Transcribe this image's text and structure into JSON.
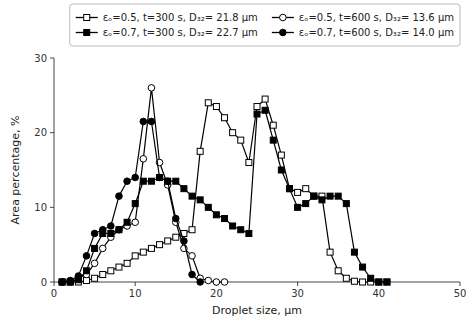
{
  "chart_data": {
    "type": "line",
    "xlabel": "Droplet size, μm",
    "ylabel": "Area percentage, %",
    "xlim": [
      0,
      50
    ],
    "ylim": [
      0,
      30
    ],
    "xticks": [
      0,
      10,
      20,
      30,
      40,
      50
    ],
    "yticks": [
      0,
      10,
      20,
      30
    ],
    "grid": false,
    "legend": "upper right",
    "series": [
      {
        "name": "εₒ=0.5, t=300 s, D₃₂= 21.8 μm",
        "color": "#000000",
        "marker": "square-open",
        "x": [
          1,
          2,
          3,
          4,
          5,
          6,
          7,
          8,
          9,
          10,
          11,
          12,
          13,
          14,
          15,
          16,
          17,
          18,
          19,
          20,
          21,
          22,
          23,
          24,
          25,
          26,
          27,
          28,
          29,
          30,
          31,
          32,
          33,
          34,
          35,
          36,
          37,
          38,
          39,
          40,
          41
        ],
        "values": [
          0.0,
          0.0,
          0.0,
          0.2,
          0.5,
          1.0,
          1.5,
          2.0,
          2.5,
          3.5,
          4.0,
          4.5,
          5.0,
          5.5,
          6.0,
          6.5,
          7.0,
          17.5,
          24.0,
          23.5,
          22.0,
          20.0,
          19.0,
          16.0,
          23.5,
          24.5,
          21.0,
          17.0,
          12.5,
          12.0,
          12.5,
          11.5,
          11.5,
          4.0,
          1.5,
          0.5,
          0.1,
          0.0,
          0.0,
          0.0,
          0.0
        ]
      },
      {
        "name": "εₒ=0.5, t=600 s, D₃₂= 13.6 μm",
        "color": "#000000",
        "marker": "circle-open",
        "x": [
          1,
          2,
          3,
          4,
          5,
          6,
          7,
          8,
          9,
          10,
          11,
          12,
          13,
          14,
          15,
          16,
          17,
          18,
          19,
          20,
          21
        ],
        "values": [
          0.0,
          0.0,
          0.5,
          1.0,
          2.5,
          4.5,
          6.0,
          7.0,
          7.5,
          8.0,
          16.5,
          26.0,
          16.0,
          13.0,
          8.0,
          4.5,
          3.5,
          0.5,
          0.2,
          0.0,
          0.0
        ]
      },
      {
        "name": "εₒ=0.7, t=300 s, D₃₂= 22.7 μm",
        "color": "#000000",
        "marker": "square",
        "x": [
          1,
          2,
          3,
          4,
          5,
          6,
          7,
          8,
          9,
          10,
          11,
          12,
          13,
          14,
          15,
          16,
          17,
          18,
          19,
          20,
          21,
          22,
          23,
          24,
          25,
          26,
          27,
          28,
          29,
          30,
          31,
          32,
          33,
          34,
          35,
          36,
          37,
          38,
          39,
          40,
          41
        ],
        "values": [
          0.0,
          0.0,
          0.3,
          1.5,
          4.5,
          6.5,
          6.5,
          7.0,
          8.0,
          10.5,
          13.5,
          13.5,
          14.0,
          13.5,
          13.5,
          12.5,
          11.5,
          11.0,
          10.0,
          9.0,
          8.5,
          7.5,
          7.0,
          6.5,
          22.5,
          23.0,
          19.0,
          15.0,
          12.5,
          10.0,
          10.5,
          11.5,
          11.0,
          11.5,
          11.5,
          10.5,
          4.0,
          2.0,
          0.5,
          0.0,
          0.0
        ]
      },
      {
        "name": "εₒ=0.7, t=600 s, D₃₂= 14.0 μm",
        "color": "#000000",
        "marker": "circle",
        "x": [
          1,
          2,
          3,
          4,
          5,
          6,
          7,
          8,
          9,
          10,
          11,
          12,
          13,
          14,
          15,
          16,
          17,
          18
        ],
        "values": [
          0.0,
          0.2,
          0.8,
          3.5,
          6.5,
          7.0,
          7.5,
          11.5,
          13.5,
          14.0,
          21.5,
          21.5,
          14.0,
          13.5,
          8.5,
          5.5,
          1.0,
          0.0
        ]
      }
    ]
  }
}
